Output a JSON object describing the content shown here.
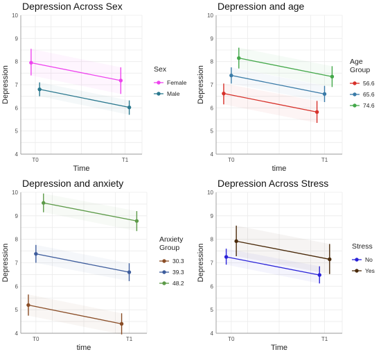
{
  "chart_data": [
    {
      "type": "line",
      "title": "Depression Across Sex",
      "xlabel": "Time",
      "ylabel": "Depression",
      "categories": [
        "T0",
        "T1"
      ],
      "ylim": [
        4,
        10
      ],
      "yticks": [
        4,
        5,
        6,
        7,
        8,
        9,
        10
      ],
      "legend": {
        "title": "Sex",
        "position": "right"
      },
      "series": [
        {
          "name": "Female",
          "color": "#ee44ee",
          "values": [
            7.95,
            7.18
          ],
          "lower": [
            7.4,
            6.6
          ],
          "upper": [
            8.55,
            7.75
          ]
        },
        {
          "name": "Male",
          "color": "#2a788e",
          "values": [
            6.8,
            6.02
          ],
          "lower": [
            6.5,
            5.7
          ],
          "upper": [
            7.1,
            6.32
          ]
        }
      ]
    },
    {
      "type": "line",
      "title": "Depression and age",
      "xlabel": "time",
      "ylabel": "Depression",
      "categories": [
        "T0",
        "T1"
      ],
      "ylim": [
        4,
        10
      ],
      "yticks": [
        4,
        5,
        6,
        7,
        8,
        9,
        10
      ],
      "legend": {
        "title": "Age Group",
        "position": "right"
      },
      "series": [
        {
          "name": "56.6",
          "color": "#d7312a",
          "values": [
            6.62,
            5.82
          ],
          "lower": [
            6.15,
            5.35
          ],
          "upper": [
            7.05,
            6.3
          ]
        },
        {
          "name": "65.6",
          "color": "#3a7ba8",
          "values": [
            7.4,
            6.6
          ],
          "lower": [
            7.05,
            6.25
          ],
          "upper": [
            7.75,
            6.95
          ]
        },
        {
          "name": "74.6",
          "color": "#44a84a",
          "values": [
            8.15,
            7.35
          ],
          "lower": [
            7.7,
            6.9
          ],
          "upper": [
            8.6,
            7.8
          ]
        }
      ]
    },
    {
      "type": "line",
      "title": "Depression and anxiety",
      "xlabel": "time",
      "ylabel": "Depression",
      "categories": [
        "T0",
        "T1"
      ],
      "ylim": [
        4,
        10
      ],
      "yticks": [
        4,
        5,
        6,
        7,
        8,
        9,
        10
      ],
      "legend": {
        "title": "Anxiety Group",
        "position": "right"
      },
      "series": [
        {
          "name": "30.3",
          "color": "#8a4d26",
          "values": [
            5.2,
            4.4
          ],
          "lower": [
            4.75,
            3.95
          ],
          "upper": [
            5.65,
            4.85
          ]
        },
        {
          "name": "39.3",
          "color": "#3d5c9c",
          "values": [
            7.38,
            6.6
          ],
          "lower": [
            7.0,
            6.22
          ],
          "upper": [
            7.76,
            6.98
          ]
        },
        {
          "name": "48.2",
          "color": "#5c9a48",
          "values": [
            9.55,
            8.78
          ],
          "lower": [
            9.15,
            8.35
          ],
          "upper": [
            9.95,
            9.2
          ]
        }
      ]
    },
    {
      "type": "line",
      "title": "Depression Across Stress",
      "xlabel": "Time",
      "ylabel": "Depression",
      "categories": [
        "T0",
        "T1"
      ],
      "ylim": [
        4,
        10
      ],
      "yticks": [
        4,
        5,
        6,
        7,
        8,
        9,
        10
      ],
      "legend": {
        "title": "Stress",
        "position": "right"
      },
      "series": [
        {
          "name": "No",
          "color": "#2a22d8",
          "values": [
            7.25,
            6.48
          ],
          "lower": [
            6.92,
            6.12
          ],
          "upper": [
            7.6,
            6.85
          ]
        },
        {
          "name": "Yes",
          "color": "#4a2a0a",
          "values": [
            7.92,
            7.15
          ],
          "lower": [
            7.28,
            6.52
          ],
          "upper": [
            8.58,
            7.8
          ]
        }
      ]
    }
  ]
}
